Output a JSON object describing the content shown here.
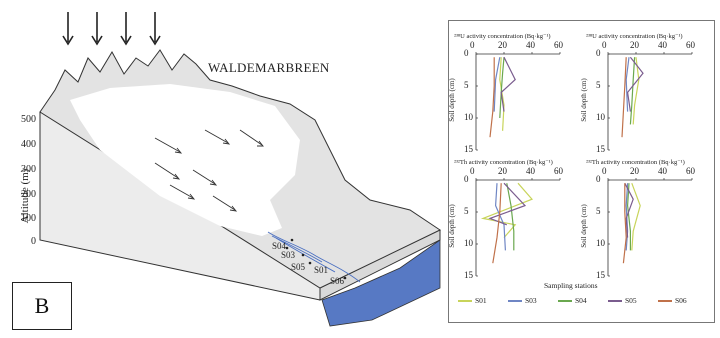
{
  "diagram": {
    "title": "WALDEMARBREEN",
    "panel_label": "B",
    "altitude_axis_label": "Altitude (m)",
    "altitude_ticks": [
      "500",
      "400",
      "300",
      "200",
      "100",
      "0"
    ],
    "stations": [
      {
        "name": "S04"
      },
      {
        "name": "S03"
      },
      {
        "name": "S05"
      },
      {
        "name": "S01"
      },
      {
        "name": "S06"
      }
    ]
  },
  "chart_data": [
    {
      "type": "line",
      "title": "²³⁸U activity concentration (Bq·kg⁻¹)",
      "ylabel": "Soil depth (cm)",
      "xlim": [
        0,
        60
      ],
      "ylim": [
        0,
        15
      ],
      "x_ticks": [
        "0",
        "20",
        "40",
        "60"
      ],
      "y_ticks": [
        "0",
        "5",
        "10",
        "15"
      ],
      "series": [
        {
          "name": "S01",
          "values": [
            [
              18,
              0.5
            ],
            [
              17,
              4
            ],
            [
              20,
              8
            ],
            [
              19,
              12
            ]
          ]
        },
        {
          "name": "S03",
          "values": [
            [
              17,
              0.5
            ],
            [
              14,
              4
            ],
            [
              13,
              9
            ]
          ]
        },
        {
          "name": "S04",
          "values": [
            [
              20,
              0.5
            ],
            [
              19,
              3
            ],
            [
              18,
              6
            ],
            [
              17,
              10
            ]
          ]
        },
        {
          "name": "S05",
          "values": [
            [
              20,
              0.5
            ],
            [
              28,
              4
            ],
            [
              18,
              6
            ],
            [
              20,
              9
            ]
          ]
        },
        {
          "name": "S06",
          "values": [
            [
              13,
              0.5
            ],
            [
              13,
              5
            ],
            [
              12,
              9
            ],
            [
              10,
              13
            ]
          ]
        }
      ]
    },
    {
      "type": "line",
      "title": "²³⁸U activity concentration (Bq·kg⁻¹)",
      "ylabel": "Soil depth (cm)",
      "xlim": [
        0,
        60
      ],
      "ylim": [
        0,
        15
      ],
      "x_ticks": [
        "0",
        "20",
        "40",
        "60"
      ],
      "y_ticks": [
        "0",
        "5",
        "10",
        "15"
      ],
      "series": [
        {
          "name": "S01",
          "values": [
            [
              20,
              0.5
            ],
            [
              22,
              4
            ],
            [
              19,
              8
            ],
            [
              18,
              11
            ]
          ]
        },
        {
          "name": "S03",
          "values": [
            [
              15,
              0.5
            ],
            [
              13,
              4
            ],
            [
              14,
              9
            ]
          ]
        },
        {
          "name": "S04",
          "values": [
            [
              19,
              0.5
            ],
            [
              18,
              4
            ],
            [
              17,
              8
            ],
            [
              16,
              11
            ]
          ]
        },
        {
          "name": "S05",
          "values": [
            [
              16,
              0.5
            ],
            [
              25,
              3
            ],
            [
              14,
              6
            ],
            [
              16,
              9
            ]
          ]
        },
        {
          "name": "S06",
          "values": [
            [
              13,
              0.5
            ],
            [
              12,
              5
            ],
            [
              11,
              9
            ],
            [
              10,
              13
            ]
          ]
        }
      ]
    },
    {
      "type": "line",
      "title": "²³²Th activity concentration (Bq·kg⁻¹)",
      "ylabel": "Soil depth (cm)",
      "xlim": [
        0,
        60
      ],
      "ylim": [
        0,
        15
      ],
      "x_ticks": [
        "0",
        "20",
        "40",
        "60"
      ],
      "y_ticks": [
        "0",
        "5",
        "10",
        "15"
      ],
      "series": [
        {
          "name": "S01",
          "values": [
            [
              30,
              0.5
            ],
            [
              40,
              3
            ],
            [
              5,
              6
            ],
            [
              28,
              7
            ],
            [
              20,
              9
            ]
          ]
        },
        {
          "name": "S03",
          "values": [
            [
              15,
              0.5
            ],
            [
              14,
              4
            ],
            [
              20,
              7
            ],
            [
              21,
              11
            ]
          ]
        },
        {
          "name": "S04",
          "values": [
            [
              22,
              0.5
            ],
            [
              25,
              4
            ],
            [
              27,
              8
            ],
            [
              27,
              11
            ]
          ]
        },
        {
          "name": "S05",
          "values": [
            [
              20,
              0.5
            ],
            [
              35,
              4
            ],
            [
              10,
              6
            ],
            [
              22,
              7
            ]
          ]
        },
        {
          "name": "S06",
          "values": [
            [
              18,
              0.5
            ],
            [
              17,
              5
            ],
            [
              15,
              9
            ],
            [
              12,
              13
            ]
          ]
        }
      ]
    },
    {
      "type": "line",
      "title": "²³²Th activity concentration (Bq·kg⁻¹)",
      "ylabel": "Soil depth (cm)",
      "xlim": [
        0,
        60
      ],
      "ylim": [
        0,
        15
      ],
      "x_ticks": [
        "0",
        "20",
        "40",
        "60"
      ],
      "y_ticks": [
        "0",
        "5",
        "10",
        "15"
      ],
      "series": [
        {
          "name": "S01",
          "values": [
            [
              17,
              0.5
            ],
            [
              23,
              4
            ],
            [
              18,
              8
            ],
            [
              17,
              11
            ]
          ]
        },
        {
          "name": "S03",
          "values": [
            [
              14,
              0.5
            ],
            [
              13,
              4
            ],
            [
              14,
              8
            ],
            [
              13,
              11
            ]
          ]
        },
        {
          "name": "S04",
          "values": [
            [
              15,
              0.5
            ],
            [
              14,
              4
            ],
            [
              16,
              8
            ],
            [
              16,
              11
            ]
          ]
        },
        {
          "name": "S05",
          "values": [
            [
              12,
              0.5
            ],
            [
              18,
              3
            ],
            [
              13,
              6
            ],
            [
              14,
              9
            ]
          ]
        },
        {
          "name": "S06",
          "values": [
            [
              12,
              0.5
            ],
            [
              12,
              5
            ],
            [
              13,
              9
            ],
            [
              11,
              13
            ]
          ]
        }
      ]
    }
  ],
  "legend": {
    "title": "Sampling stations",
    "items": [
      {
        "name": "S01",
        "color": "#c8d45a"
      },
      {
        "name": "S03",
        "color": "#6f86c4"
      },
      {
        "name": "S04",
        "color": "#6aa84f"
      },
      {
        "name": "S05",
        "color": "#7a5c8e"
      },
      {
        "name": "S06",
        "color": "#c0714a"
      }
    ]
  }
}
